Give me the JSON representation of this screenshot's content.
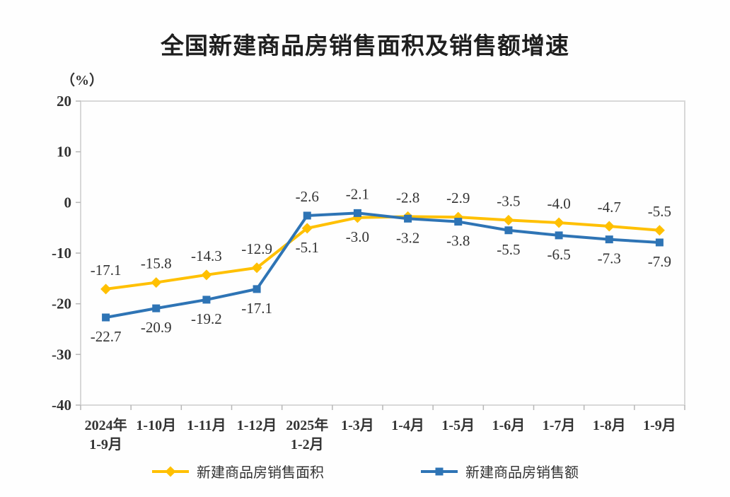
{
  "title": "全国新建商品房销售面积及销售额增速",
  "chart_data": {
    "type": "line",
    "title": "全国新建商品房销售面积及销售额增速",
    "ylabel": "（%）",
    "ylim": [
      -40,
      20
    ],
    "yticks": [
      20,
      10,
      0,
      -10,
      -20,
      -30,
      -40
    ],
    "grid": false,
    "legend_position": "bottom",
    "label_decimals": 1,
    "categories": [
      "2024年\n1-9月",
      "1-10月",
      "1-11月",
      "1-12月",
      "2025年\n1-2月",
      "1-3月",
      "1-4月",
      "1-5月",
      "1-6月",
      "1-7月",
      "1-8月",
      "1-9月"
    ],
    "series": [
      {
        "name": "新建商品房销售面积",
        "marker": "diamond",
        "color": "#FFC000",
        "values": [
          -17.1,
          -15.8,
          -14.3,
          -12.9,
          -5.1,
          -3.0,
          -2.8,
          -2.9,
          -3.5,
          -4.0,
          -4.7,
          -5.5
        ]
      },
      {
        "name": "新建商品房销售额",
        "marker": "square",
        "color": "#2E74B5",
        "values": [
          -22.7,
          -20.9,
          -19.2,
          -17.1,
          -2.6,
          -2.1,
          -3.2,
          -3.8,
          -5.5,
          -6.5,
          -7.3,
          -7.9
        ]
      }
    ],
    "axis_color": "#D8D8D8",
    "tick_color": "#B7B7B7",
    "label_color": "#333333"
  }
}
